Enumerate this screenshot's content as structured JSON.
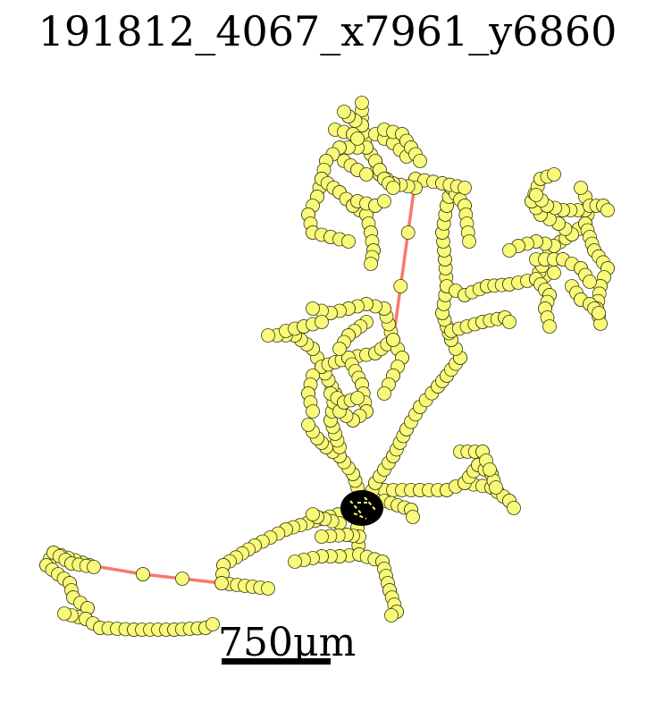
{
  "title": "191812_4067_x7961_y6860",
  "scale_bar": {
    "label": "750μm"
  },
  "colors": {
    "branch": "#f87a6a",
    "node_fill": "#f9f97a",
    "node_stroke": "#3a3a1a",
    "soma": "#000000",
    "background": "#ffffff"
  },
  "chart_data": {
    "type": "diagram",
    "title": "191812_4067_x7961_y6860"
  }
}
